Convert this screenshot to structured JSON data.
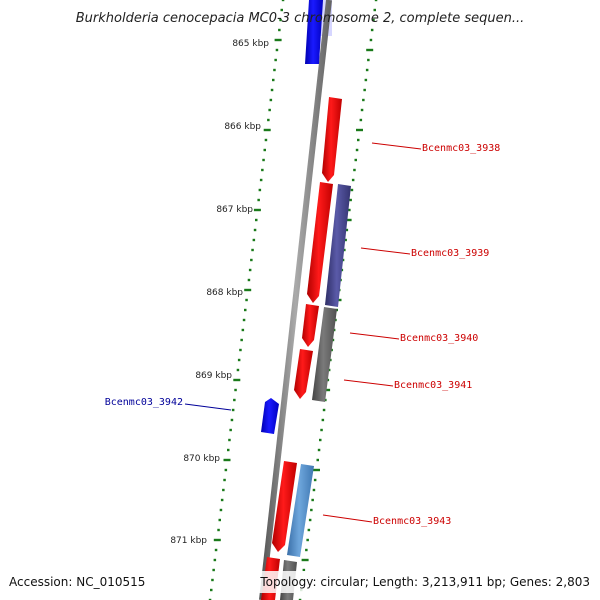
{
  "title": "Burkholderia cenocepacia MC0-3 chromosome 2, complete sequen...",
  "accession": "Accession: NC_010515",
  "summary": "Topology: circular; Length: 3,213,911 bp; Genes: 2,803",
  "colors": {
    "forward": "#ff0000",
    "reverse": "#0000ff",
    "forward_label": "#cc0000",
    "reverse_label": "#000099",
    "ruler": "#1a7a1a",
    "backbone": "#777777"
  },
  "kbp_labels": [
    "865 kbp",
    "866 kbp",
    "867 kbp",
    "868 kbp",
    "869 kbp",
    "870 kbp",
    "871 kbp"
  ],
  "genes": [
    {
      "label": "Bcenmc03_3938",
      "strand": "forward"
    },
    {
      "label": "Bcenmc03_3939",
      "strand": "forward"
    },
    {
      "label": "Bcenmc03_3940",
      "strand": "forward"
    },
    {
      "label": "Bcenmc03_3941",
      "strand": "forward"
    },
    {
      "label": "Bcenmc03_3942",
      "strand": "reverse"
    },
    {
      "label": "Bcenmc03_3943",
      "strand": "forward"
    }
  ]
}
